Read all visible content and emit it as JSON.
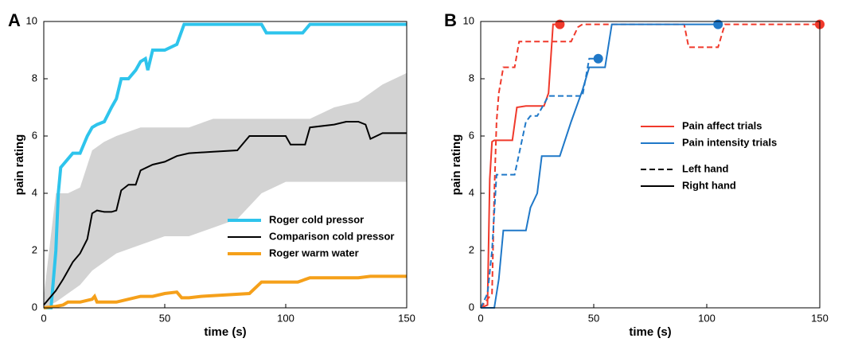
{
  "chart_data": [
    {
      "type": "line",
      "panel_label": "A",
      "xlabel": "time (s)",
      "ylabel": "pain rating",
      "xlim": [
        0,
        150
      ],
      "ylim": [
        0,
        10
      ],
      "xticks": [
        0,
        50,
        100,
        150
      ],
      "yticks": [
        0,
        2,
        4,
        6,
        8,
        10
      ],
      "legend_position": "lower right",
      "band": {
        "color": "#d3d3d3",
        "x": [
          0,
          5,
          10,
          15,
          20,
          25,
          30,
          40,
          50,
          60,
          70,
          80,
          90,
          100,
          110,
          120,
          130,
          140,
          150
        ],
        "upper": [
          0.4,
          4,
          4,
          4.2,
          5.5,
          5.8,
          6,
          6.3,
          6.3,
          6.3,
          6.6,
          6.6,
          6.6,
          6.6,
          6.6,
          7,
          7.2,
          7.8,
          8.2
        ],
        "lower": [
          0,
          0.2,
          0.5,
          0.8,
          1.3,
          1.6,
          1.9,
          2.2,
          2.5,
          2.5,
          2.8,
          3.1,
          4,
          4.4,
          4.4,
          4.4,
          4.4,
          4.4,
          4.4
        ]
      },
      "series": [
        {
          "name": "Roger cold pressor",
          "color": "#2ec4ec",
          "width": 4,
          "x": [
            0,
            3,
            5,
            6,
            7,
            8,
            10,
            12,
            15,
            18,
            20,
            22,
            25,
            28,
            30,
            32,
            35,
            38,
            40,
            42,
            43,
            45,
            50,
            55,
            58,
            60,
            90,
            92,
            95,
            105,
            107,
            110,
            150
          ],
          "values": [
            0,
            0,
            2,
            4,
            4.9,
            5,
            5.2,
            5.4,
            5.4,
            6,
            6.3,
            6.4,
            6.5,
            7,
            7.3,
            8,
            8,
            8.3,
            8.6,
            8.7,
            8.3,
            9,
            9,
            9.2,
            9.9,
            9.9,
            9.9,
            9.6,
            9.6,
            9.6,
            9.6,
            9.9,
            9.9
          ]
        },
        {
          "name": "Comparison cold pressor",
          "color": "#000000",
          "width": 2,
          "x": [
            0,
            3,
            5,
            8,
            10,
            12,
            15,
            18,
            20,
            22,
            25,
            28,
            30,
            32,
            35,
            38,
            40,
            45,
            50,
            55,
            60,
            70,
            80,
            85,
            90,
            100,
            102,
            108,
            110,
            120,
            125,
            130,
            133,
            135,
            140,
            150
          ],
          "values": [
            0.1,
            0.4,
            0.6,
            1,
            1.3,
            1.6,
            1.9,
            2.4,
            3.3,
            3.4,
            3.35,
            3.35,
            3.4,
            4.1,
            4.3,
            4.3,
            4.8,
            5,
            5.1,
            5.3,
            5.4,
            5.45,
            5.5,
            6,
            6,
            6,
            5.7,
            5.7,
            6.3,
            6.4,
            6.5,
            6.5,
            6.4,
            5.9,
            6.1,
            6.1
          ]
        },
        {
          "name": "Roger warm water",
          "color": "#f5a01a",
          "width": 4,
          "x": [
            0,
            5,
            8,
            10,
            15,
            20,
            21,
            22,
            30,
            35,
            40,
            45,
            50,
            55,
            57,
            60,
            65,
            85,
            90,
            105,
            110,
            130,
            135,
            150
          ],
          "values": [
            0,
            0.05,
            0.1,
            0.2,
            0.2,
            0.3,
            0.4,
            0.2,
            0.2,
            0.3,
            0.4,
            0.4,
            0.5,
            0.55,
            0.35,
            0.35,
            0.4,
            0.5,
            0.9,
            0.9,
            1.05,
            1.05,
            1.1,
            1.1
          ]
        }
      ]
    },
    {
      "type": "line",
      "panel_label": "B",
      "xlabel": "time (s)",
      "ylabel": "pain rating",
      "xlim": [
        0,
        150
      ],
      "ylim": [
        0,
        10
      ],
      "xticks": [
        0,
        50,
        100,
        150
      ],
      "yticks": [
        0,
        2,
        4,
        6,
        8,
        10
      ],
      "legend_position": "center right",
      "end_marker": true,
      "legend": [
        {
          "label": "Pain affect trials",
          "color": "#f0392b",
          "dash": false
        },
        {
          "label": "Pain intensity trials",
          "color": "#1f78c8",
          "dash": false
        },
        {
          "label": "Left hand",
          "color": "#000000",
          "dash": true
        },
        {
          "label": "Right hand",
          "color": "#000000",
          "dash": false
        }
      ],
      "series": [
        {
          "color": "#f0392b",
          "dash": false,
          "width": 2,
          "x": [
            0,
            3,
            4,
            5,
            6,
            14,
            16,
            20,
            28,
            30,
            32,
            35
          ],
          "values": [
            0,
            0.1,
            4.5,
            5.8,
            5.85,
            5.85,
            7,
            7.05,
            7.05,
            7.5,
            9.9,
            9.9
          ]
        },
        {
          "color": "#f0392b",
          "dash": true,
          "width": 2,
          "x": [
            0,
            5,
            6,
            7,
            8,
            10,
            15,
            17,
            40,
            43,
            45,
            90,
            92,
            105,
            108,
            150
          ],
          "values": [
            0,
            0.5,
            4,
            6.5,
            7.5,
            8.4,
            8.4,
            9.3,
            9.3,
            9.8,
            9.9,
            9.9,
            9.1,
            9.1,
            9.9,
            9.9
          ]
        },
        {
          "color": "#1f78c8",
          "dash": false,
          "width": 2,
          "x": [
            0,
            6,
            8,
            10,
            20,
            22,
            25,
            27,
            35,
            40,
            45,
            48,
            55,
            58,
            105
          ],
          "values": [
            0,
            0,
            1,
            2.7,
            2.7,
            3.5,
            4,
            5.3,
            5.3,
            6.5,
            7.6,
            8.4,
            8.4,
            9.9,
            9.9
          ]
        },
        {
          "color": "#1f78c8",
          "dash": true,
          "width": 2,
          "x": [
            0,
            3,
            5,
            7,
            15,
            20,
            22,
            25,
            30,
            45,
            48,
            52
          ],
          "values": [
            0,
            0.5,
            2,
            4.65,
            4.65,
            6.5,
            6.7,
            6.7,
            7.4,
            7.4,
            8.7,
            8.7
          ]
        }
      ]
    }
  ]
}
